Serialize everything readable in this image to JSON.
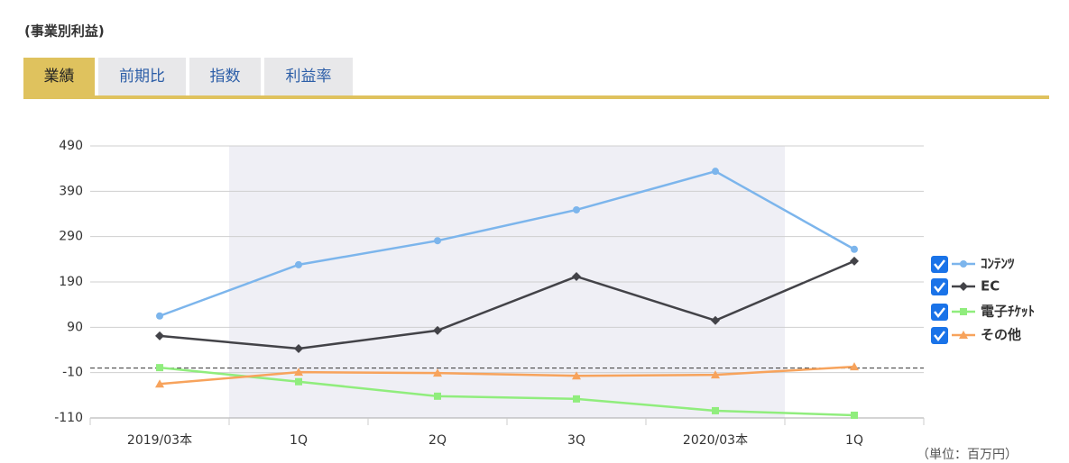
{
  "header": {
    "title": "(事業別利益)"
  },
  "tabs": [
    "業績",
    "前期比",
    "指数",
    "利益率"
  ],
  "unit_note": "（単位：百万円）",
  "chart_data": {
    "type": "line",
    "categories": [
      "2019/03本",
      "1Q",
      "2Q",
      "3Q",
      "2020/03本",
      "1Q"
    ],
    "series": [
      {
        "name": "ｺﾝﾃﾝﾂ",
        "color": "#7cb5ec",
        "marker": "circle",
        "values": [
          115,
          228,
          281,
          349,
          434,
          262
        ]
      },
      {
        "name": "EC",
        "color": "#434348",
        "marker": "diamond",
        "values": [
          71,
          43,
          83,
          202,
          105,
          236
        ]
      },
      {
        "name": "電子ﾁｹｯﾄ",
        "color": "#90ed7d",
        "marker": "square",
        "values": [
          1,
          -30,
          -62,
          -68,
          -94,
          -104
        ]
      },
      {
        "name": "その他",
        "color": "#f7a35c",
        "marker": "triangle",
        "values": [
          -35,
          -9,
          -11,
          -17,
          -15,
          3
        ]
      }
    ],
    "ylim": [
      -110,
      490
    ],
    "yticks": [
      -110,
      -10,
      90,
      190,
      290,
      390,
      490
    ],
    "grid": true
  }
}
